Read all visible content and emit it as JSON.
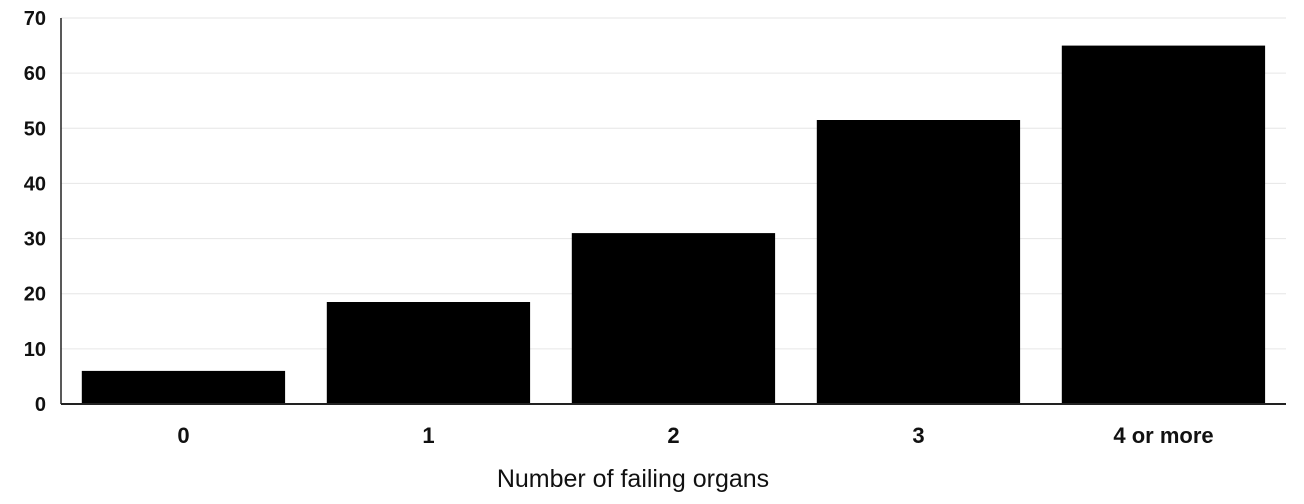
{
  "chart_data": {
    "type": "bar",
    "categories": [
      "0",
      "1",
      "2",
      "3",
      "4 or more"
    ],
    "values": [
      6,
      18.5,
      31,
      51.5,
      65
    ],
    "title": "",
    "xlabel": "Number of failing organs",
    "ylabel": "",
    "ylim": [
      0,
      70
    ],
    "yticks": [
      0,
      10,
      20,
      30,
      40,
      50,
      60,
      70
    ],
    "grid": true,
    "legend": "none",
    "colors": {
      "bar": "#000000",
      "grid": "#e6e6e6",
      "axis": "#222222",
      "text": "#111111",
      "background": "#ffffff"
    }
  }
}
